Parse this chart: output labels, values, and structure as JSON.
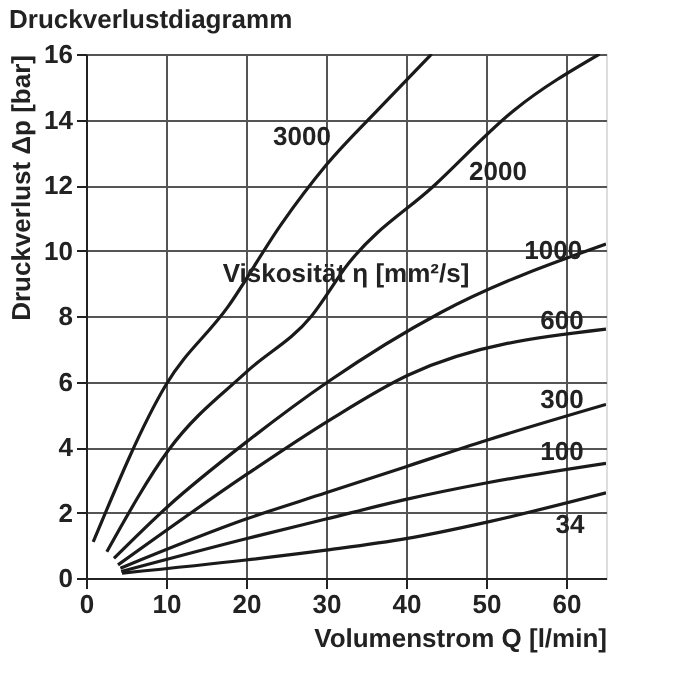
{
  "chart_data": {
    "type": "line",
    "title": "Druckverlustdiagramm",
    "xlabel": "Volumenstrom Q [l/min]",
    "ylabel": "Druckverlust Δp [bar]",
    "legend_title": "Viskosität η [mm²/s]",
    "xlim": [
      0,
      65
    ],
    "ylim": [
      0,
      16
    ],
    "xticks": [
      0,
      10,
      20,
      30,
      40,
      50,
      60
    ],
    "yticks": [
      0,
      2,
      4,
      6,
      8,
      10,
      12,
      14,
      16
    ],
    "grid": true,
    "line_style": "solid",
    "marker": "none",
    "series": [
      {
        "color": "#1a1a1a",
        "x": [
          0.9,
          10,
          17.8,
          24.4,
          30,
          36.9,
          43.2
        ],
        "values": [
          1.1,
          5.9,
          8.3,
          10.8,
          12.6,
          14.4,
          16
        ]
      },
      {
        "color": "#1a1a1a",
        "x": [
          2.6,
          10.3,
          20.1,
          28.2,
          32.8,
          43.6,
          53.6,
          64.2
        ],
        "values": [
          0.8,
          3.9,
          6.3,
          8,
          9.6,
          12,
          14.3,
          16
        ]
      },
      {
        "color": "#1a1a1a",
        "x": [
          3.5,
          10.3,
          20.3,
          30.3,
          44.3,
          65
        ],
        "values": [
          0.6,
          2.2,
          4.2,
          6,
          8.1,
          10.2
        ]
      },
      {
        "color": "#1a1a1a",
        "x": [
          4,
          20.3,
          30.3,
          40.3,
          65
        ],
        "values": [
          0.4,
          3.2,
          4.8,
          6.2,
          7.6
        ]
      },
      {
        "color": "#1a1a1a",
        "x": [
          4.3,
          20,
          30,
          40,
          50,
          65
        ],
        "values": [
          0.3,
          1.8,
          2.6,
          3.4,
          4.2,
          5.3
        ]
      },
      {
        "color": "#1a1a1a",
        "x": [
          4.4,
          20,
          30,
          40,
          50,
          65
        ],
        "values": [
          0.2,
          1.2,
          1.8,
          2.4,
          2.9,
          3.5
        ]
      },
      {
        "color": "#1a1a1a",
        "x": [
          4.5,
          20,
          30,
          40,
          50,
          65
        ],
        "values": [
          0.15,
          0.55,
          0.85,
          1.2,
          1.7,
          2.6
        ]
      }
    ],
    "annotations": [
      {
        "text": "3000",
        "x": 30,
        "y": 12.6
      },
      {
        "text": "2000",
        "x": 51.5,
        "y": 13.8
      },
      {
        "text": "1000",
        "x": 58.4,
        "y": 9.5
      },
      {
        "text": "600",
        "x": 59.5,
        "y": 7.3
      },
      {
        "text": "300",
        "x": 59.5,
        "y": 4.9
      },
      {
        "text": "100",
        "x": 59.5,
        "y": 3.3
      },
      {
        "text": "34",
        "x": 60.5,
        "y": 2.3
      }
    ]
  }
}
